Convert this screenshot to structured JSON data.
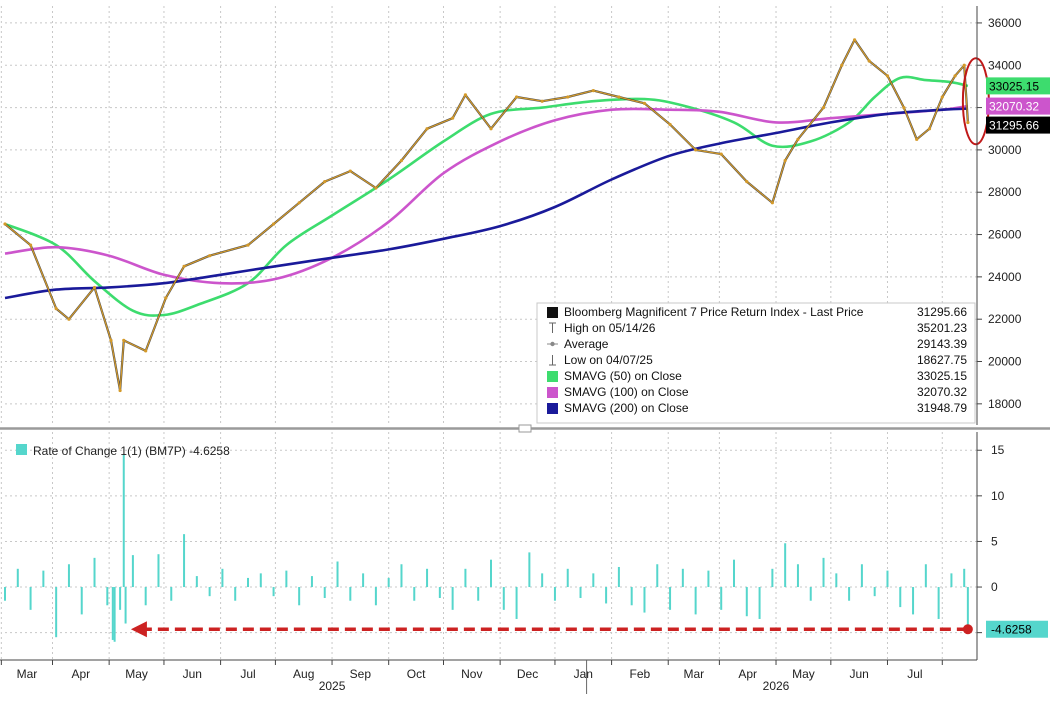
{
  "chart_data": [
    {
      "type": "line",
      "title": "",
      "xlabel": "",
      "ylabel": "",
      "ylim": [
        17000,
        36800
      ],
      "y_ticks": [
        18000,
        20000,
        22000,
        24000,
        26000,
        28000,
        30000,
        32000,
        34000,
        36000
      ],
      "x_axis": {
        "months": [
          "Mar",
          "Apr",
          "May",
          "Jun",
          "Jul",
          "Aug",
          "Sep",
          "Oct",
          "Nov",
          "Dec",
          "Jan",
          "Feb",
          "Mar",
          "Apr",
          "May",
          "Jun",
          "Jul"
        ],
        "years": [
          "2025",
          "2026"
        ]
      },
      "x_range": [
        "2025-02-03",
        "2026-07-20"
      ],
      "grid": true,
      "legend_position": "bottom-right",
      "legend": [
        {
          "label": "Bloomberg Magnificent 7 Price Return Index - Last Price",
          "value": "31295.66",
          "color": "#111111",
          "kind": "series"
        },
        {
          "label": "High on 05/14/26",
          "value": "35201.23",
          "kind": "high"
        },
        {
          "label": "Average",
          "value": "29143.39",
          "kind": "average"
        },
        {
          "label": "Low on 04/07/25",
          "value": "18627.75",
          "kind": "low"
        },
        {
          "label": "SMAVG (50)  on Close",
          "value": "33025.15",
          "color": "#3ddc6e",
          "kind": "series"
        },
        {
          "label": "SMAVG (100)  on Close",
          "value": "32070.32",
          "color": "#cc55cc",
          "kind": "series"
        },
        {
          "label": "SMAVG (200)  on Close",
          "value": "31948.79",
          "color": "#1a1a9a",
          "kind": "series"
        }
      ],
      "value_tags": [
        {
          "value": "33025.15",
          "y": 33025.15,
          "bg": "#3ddc6e",
          "fg": "#000000"
        },
        {
          "value": "32070.32",
          "y": 32070.32,
          "bg": "#cc55cc",
          "fg": "#ffffff"
        },
        {
          "value": "31295.66",
          "y": 31295.66,
          "bg": "#000000",
          "fg": "#ffffff"
        }
      ],
      "price": {
        "name": "Bloomberg Magnificent 7 Price Return Index - Last Price",
        "color": "#d49a2a",
        "x": [
          "2025-02-03",
          "2025-02-17",
          "2025-03-03",
          "2025-03-10",
          "2025-03-24",
          "2025-04-02",
          "2025-04-07",
          "2025-04-09",
          "2025-04-21",
          "2025-05-02",
          "2025-05-12",
          "2025-05-26",
          "2025-06-16",
          "2025-06-30",
          "2025-07-14",
          "2025-07-28",
          "2025-08-11",
          "2025-08-25",
          "2025-09-08",
          "2025-09-22",
          "2025-10-06",
          "2025-10-13",
          "2025-10-27",
          "2025-11-10",
          "2025-11-24",
          "2025-12-08",
          "2025-12-22",
          "2026-01-05",
          "2026-01-19",
          "2026-02-02",
          "2026-02-16",
          "2026-03-02",
          "2026-03-16",
          "2026-03-30",
          "2026-04-06",
          "2026-04-13",
          "2026-04-27",
          "2026-05-07",
          "2026-05-14",
          "2026-05-22",
          "2026-06-01",
          "2026-06-10",
          "2026-06-17",
          "2026-06-24",
          "2026-07-01",
          "2026-07-08",
          "2026-07-13",
          "2026-07-15"
        ],
        "y": [
          26500,
          25500,
          22500,
          22000,
          23500,
          21000,
          18627.75,
          21000,
          20500,
          23000,
          24500,
          25000,
          25500,
          26500,
          27500,
          28500,
          29000,
          28200,
          29500,
          31000,
          31500,
          32600,
          31000,
          32500,
          32300,
          32500,
          32800,
          32500,
          32200,
          31200,
          30000,
          29800,
          28500,
          27500,
          29500,
          30500,
          32000,
          34000,
          35201.23,
          34200,
          33500,
          32000,
          30500,
          31000,
          32500,
          33500,
          34000,
          31295.66
        ]
      },
      "series": [
        {
          "name": "SMAVG (50)  on Close",
          "color": "#3ddc6e",
          "x": [
            "2025-02-03",
            "2025-03-03",
            "2025-03-24",
            "2025-04-14",
            "2025-05-01",
            "2025-05-20",
            "2025-06-16",
            "2025-07-07",
            "2025-08-01",
            "2025-09-01",
            "2025-10-01",
            "2025-10-27",
            "2025-11-24",
            "2025-12-22",
            "2026-01-19",
            "2026-02-09",
            "2026-03-09",
            "2026-03-30",
            "2026-04-20",
            "2026-05-11",
            "2026-05-25",
            "2026-06-08",
            "2026-06-22",
            "2026-07-06",
            "2026-07-15"
          ],
          "y": [
            26500,
            25500,
            23800,
            22400,
            22200,
            22700,
            23700,
            25500,
            26900,
            28600,
            30400,
            31700,
            32000,
            32300,
            32400,
            32100,
            31300,
            30200,
            30400,
            31300,
            32500,
            33400,
            33300,
            33200,
            33025.15
          ]
        },
        {
          "name": "SMAVG (100)  on Close",
          "color": "#cc55cc",
          "x": [
            "2025-02-03",
            "2025-03-03",
            "2025-04-01",
            "2025-05-01",
            "2025-06-01",
            "2025-07-01",
            "2025-08-01",
            "2025-09-01",
            "2025-10-01",
            "2025-11-01",
            "2025-12-01",
            "2026-01-01",
            "2026-02-01",
            "2026-03-01",
            "2026-04-01",
            "2026-05-01",
            "2026-06-01",
            "2026-07-01",
            "2026-07-15"
          ],
          "y": [
            25100,
            25400,
            25000,
            24100,
            23700,
            23900,
            24900,
            26600,
            28900,
            30400,
            31400,
            31900,
            31900,
            31800,
            31300,
            31500,
            31700,
            31900,
            32070.32
          ]
        },
        {
          "name": "SMAVG (200)  on Close",
          "color": "#1a1a9a",
          "x": [
            "2025-02-03",
            "2025-03-03",
            "2025-04-01",
            "2025-05-01",
            "2025-06-01",
            "2025-07-01",
            "2025-08-01",
            "2025-09-01",
            "2025-10-01",
            "2025-11-01",
            "2025-12-01",
            "2026-01-01",
            "2026-02-01",
            "2026-03-01",
            "2026-04-01",
            "2026-05-01",
            "2026-06-01",
            "2026-07-01",
            "2026-07-15"
          ],
          "y": [
            23000,
            23400,
            23500,
            23700,
            24100,
            24500,
            24900,
            25300,
            25800,
            26400,
            27300,
            28600,
            29700,
            30300,
            30800,
            31300,
            31700,
            31900,
            31948.79
          ]
        }
      ]
    },
    {
      "type": "bar",
      "title": "",
      "ylim": [
        -8,
        17
      ],
      "y_ticks": [
        -5,
        0,
        5,
        10,
        15
      ],
      "legend": [
        {
          "label": "Rate of Change 1(1) (BM7P)",
          "value": "-4.6258",
          "color": "#55d6cc"
        }
      ],
      "value_tag": {
        "value": "-4.6258",
        "y": -4.6258
      },
      "series": [
        {
          "name": "Rate of Change 1(1) (BM7P)",
          "color": "#55d6cc",
          "x": [
            "2025-02-03",
            "2025-02-10",
            "2025-02-17",
            "2025-02-24",
            "2025-03-03",
            "2025-03-10",
            "2025-03-17",
            "2025-03-24",
            "2025-03-31",
            "2025-04-03",
            "2025-04-04",
            "2025-04-07",
            "2025-04-09",
            "2025-04-10",
            "2025-04-14",
            "2025-04-21",
            "2025-04-28",
            "2025-05-05",
            "2025-05-12",
            "2025-05-19",
            "2025-05-26",
            "2025-06-02",
            "2025-06-09",
            "2025-06-16",
            "2025-06-23",
            "2025-06-30",
            "2025-07-07",
            "2025-07-14",
            "2025-07-21",
            "2025-07-28",
            "2025-08-04",
            "2025-08-11",
            "2025-08-18",
            "2025-08-25",
            "2025-09-01",
            "2025-09-08",
            "2025-09-15",
            "2025-09-22",
            "2025-09-29",
            "2025-10-06",
            "2025-10-13",
            "2025-10-20",
            "2025-10-27",
            "2025-11-03",
            "2025-11-10",
            "2025-11-17",
            "2025-11-24",
            "2025-12-01",
            "2025-12-08",
            "2025-12-15",
            "2025-12-22",
            "2025-12-29",
            "2026-01-05",
            "2026-01-12",
            "2026-01-19",
            "2026-01-26",
            "2026-02-02",
            "2026-02-09",
            "2026-02-16",
            "2026-02-23",
            "2026-03-02",
            "2026-03-09",
            "2026-03-16",
            "2026-03-23",
            "2026-03-30",
            "2026-04-06",
            "2026-04-13",
            "2026-04-20",
            "2026-04-27",
            "2026-05-04",
            "2026-05-11",
            "2026-05-18",
            "2026-05-25",
            "2026-06-01",
            "2026-06-08",
            "2026-06-15",
            "2026-06-22",
            "2026-06-29",
            "2026-07-06",
            "2026-07-13",
            "2026-07-15"
          ],
          "values": [
            -1.5,
            2.0,
            -2.5,
            1.8,
            -5.5,
            2.5,
            -3.0,
            3.2,
            -2.0,
            -5.8,
            -6.0,
            -2.5,
            14.5,
            -4.0,
            3.5,
            -2.0,
            3.6,
            -1.5,
            5.8,
            1.2,
            -1.0,
            2.0,
            -1.5,
            1.0,
            1.5,
            -1.0,
            1.8,
            -2.0,
            1.2,
            -1.2,
            2.8,
            -1.5,
            1.5,
            -2.0,
            1.0,
            2.5,
            -1.5,
            2.0,
            -1.2,
            -2.5,
            2.0,
            -1.5,
            3.0,
            -2.5,
            -3.5,
            3.8,
            1.5,
            -1.5,
            2.0,
            -1.2,
            1.5,
            -1.8,
            2.2,
            -2.0,
            -2.8,
            2.5,
            -2.5,
            2.0,
            -3.0,
            1.8,
            -2.5,
            3.0,
            -3.2,
            -3.5,
            2.0,
            4.8,
            2.5,
            -1.5,
            3.2,
            1.5,
            -1.5,
            2.5,
            -1.0,
            1.8,
            -2.2,
            -3.0,
            2.5,
            -3.5,
            1.5,
            2.0,
            -4.6258
          ]
        }
      ],
      "annotation": {
        "type": "dashed-arrow",
        "color": "#cc2222",
        "from": "2026-07-15",
        "to": "2025-04-14",
        "y": -4.6258
      }
    }
  ]
}
